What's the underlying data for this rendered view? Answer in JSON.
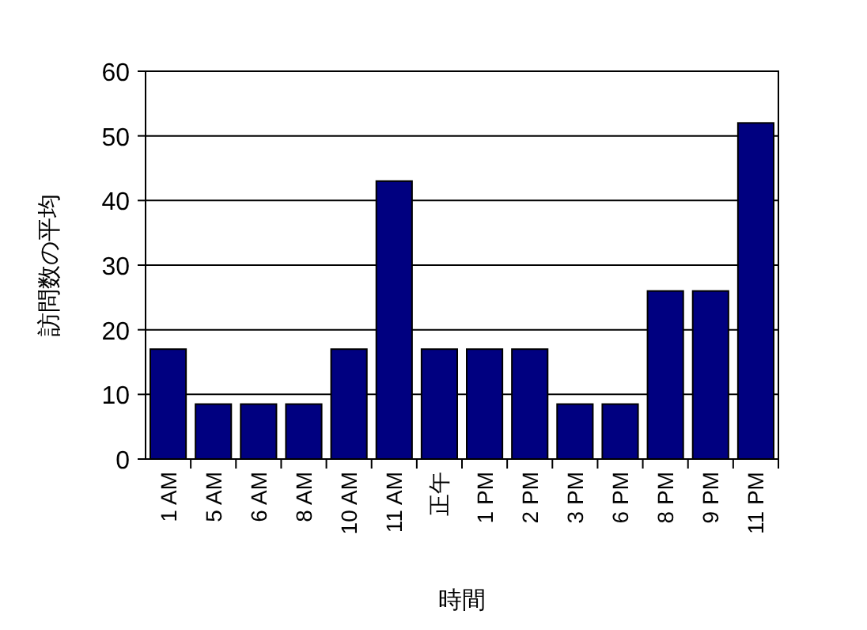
{
  "chart_data": {
    "type": "bar",
    "xlabel": "時間",
    "ylabel": "訪問数の平均",
    "categories": [
      "1 AM",
      "5 AM",
      "6 AM",
      "8 AM",
      "10 AM",
      "11 AM",
      "正午",
      "1 PM",
      "2 PM",
      "3 PM",
      "6 PM",
      "8 PM",
      "9 PM",
      "11 PM"
    ],
    "values": [
      17,
      8.5,
      8.5,
      8.5,
      17,
      43,
      17,
      17,
      17,
      8.5,
      8.5,
      26,
      26,
      52
    ],
    "color": "#000080",
    "ylim": [
      0,
      60
    ],
    "yticks": [
      0,
      10,
      20,
      30,
      40,
      50,
      60
    ],
    "grid": "y"
  }
}
